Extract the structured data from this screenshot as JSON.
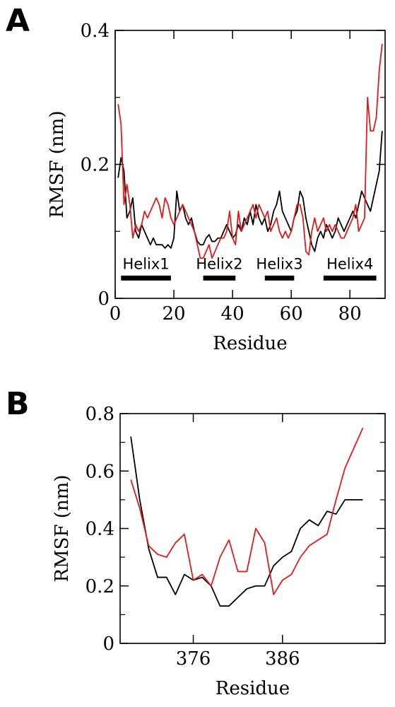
{
  "chart_data": [
    {
      "panel": "A",
      "type": "line",
      "xlabel": "Residue",
      "ylabel": "RMSF (nm)",
      "xlim": [
        0,
        92
      ],
      "ylim": [
        0,
        0.4
      ],
      "xticks": [
        0,
        20,
        40,
        60,
        80
      ],
      "yticks": [
        0,
        0.2,
        0.4
      ],
      "ytick_labels": [
        "0",
        "0.2",
        "0.4"
      ],
      "grid": false,
      "series": [
        {
          "color": "#000000",
          "x": [
            1,
            2,
            3,
            4,
            5,
            6,
            7,
            8,
            9,
            10,
            11,
            12,
            13,
            14,
            15,
            16,
            17,
            18,
            19,
            20,
            21,
            22,
            23,
            24,
            25,
            26,
            27,
            28,
            29,
            30,
            31,
            32,
            33,
            34,
            35,
            36,
            37,
            38,
            39,
            40,
            41,
            42,
            43,
            44,
            45,
            46,
            47,
            48,
            49,
            50,
            51,
            52,
            53,
            54,
            55,
            56,
            57,
            58,
            59,
            60,
            61,
            62,
            63,
            64,
            65,
            66,
            67,
            68,
            69,
            70,
            71,
            72,
            73,
            74,
            75,
            76,
            77,
            78,
            79,
            80,
            81,
            82,
            83,
            84,
            85,
            86,
            87,
            88,
            89,
            90,
            91
          ],
          "values": [
            0.18,
            0.21,
            0.19,
            0.12,
            0.13,
            0.15,
            0.1,
            0.09,
            0.11,
            0.1,
            0.09,
            0.08,
            0.09,
            0.08,
            0.08,
            0.08,
            0.075,
            0.08,
            0.075,
            0.09,
            0.16,
            0.13,
            0.14,
            0.12,
            0.11,
            0.12,
            0.1,
            0.085,
            0.08,
            0.08,
            0.09,
            0.095,
            0.085,
            0.085,
            0.09,
            0.09,
            0.1,
            0.11,
            0.1,
            0.09,
            0.095,
            0.11,
            0.1,
            0.12,
            0.11,
            0.13,
            0.11,
            0.14,
            0.12,
            0.11,
            0.12,
            0.1,
            0.11,
            0.13,
            0.14,
            0.16,
            0.13,
            0.12,
            0.11,
            0.1,
            0.12,
            0.13,
            0.16,
            0.15,
            0.12,
            0.1,
            0.08,
            0.07,
            0.09,
            0.1,
            0.09,
            0.11,
            0.1,
            0.09,
            0.1,
            0.12,
            0.11,
            0.1,
            0.11,
            0.12,
            0.13,
            0.12,
            0.14,
            0.16,
            0.15,
            0.14,
            0.13,
            0.15,
            0.17,
            0.19,
            0.25
          ]
        },
        {
          "color": "#e31a1c",
          "x": [
            1,
            2,
            3,
            4,
            5,
            6,
            7,
            8,
            9,
            10,
            11,
            12,
            13,
            14,
            15,
            16,
            17,
            18,
            19,
            20,
            21,
            22,
            23,
            24,
            25,
            26,
            27,
            28,
            29,
            30,
            31,
            32,
            33,
            34,
            35,
            36,
            37,
            38,
            39,
            40,
            41,
            42,
            43,
            44,
            45,
            46,
            47,
            48,
            49,
            50,
            51,
            52,
            53,
            54,
            55,
            56,
            57,
            58,
            59,
            60,
            61,
            62,
            63,
            64,
            65,
            66,
            67,
            68,
            69,
            70,
            71,
            72,
            73,
            74,
            75,
            76,
            77,
            78,
            79,
            80,
            81,
            82,
            83,
            84,
            85,
            86,
            87,
            88,
            89,
            90,
            91
          ],
          "values": [
            0.29,
            0.26,
            0.14,
            0.17,
            0.14,
            0.09,
            0.11,
            0.1,
            0.11,
            0.13,
            0.12,
            0.13,
            0.14,
            0.15,
            0.14,
            0.12,
            0.15,
            0.14,
            0.12,
            0.11,
            0.12,
            0.13,
            0.14,
            0.13,
            0.12,
            0.11,
            0.1,
            0.08,
            0.06,
            0.06,
            0.07,
            0.08,
            0.06,
            0.07,
            0.08,
            0.09,
            0.09,
            0.1,
            0.13,
            0.09,
            0.08,
            0.13,
            0.1,
            0.11,
            0.12,
            0.13,
            0.14,
            0.12,
            0.14,
            0.13,
            0.12,
            0.13,
            0.1,
            0.11,
            0.12,
            0.1,
            0.09,
            0.1,
            0.09,
            0.1,
            0.12,
            0.14,
            0.14,
            0.12,
            0.07,
            0.065,
            0.1,
            0.12,
            0.1,
            0.11,
            0.12,
            0.1,
            0.11,
            0.1,
            0.11,
            0.1,
            0.09,
            0.09,
            0.1,
            0.11,
            0.12,
            0.14,
            0.1,
            0.11,
            0.12,
            0.3,
            0.25,
            0.25,
            0.27,
            0.34,
            0.38
          ]
        }
      ],
      "annotations": [
        {
          "label": "Helix1",
          "start": 2,
          "end": 19
        },
        {
          "label": "Helix2",
          "start": 30,
          "end": 41
        },
        {
          "label": "Helix3",
          "start": 51,
          "end": 61
        },
        {
          "label": "Helix4",
          "start": 71,
          "end": 89
        }
      ]
    },
    {
      "panel": "B",
      "type": "line",
      "xlabel": "Residue",
      "ylabel": "RMSF (nm)",
      "xlim": [
        367.8,
        397.5
      ],
      "ylim": [
        0,
        0.8
      ],
      "xticks": [
        376,
        386
      ],
      "yticks": [
        0,
        0.2,
        0.4,
        0.6,
        0.8
      ],
      "ytick_labels": [
        "0",
        "0.2",
        "0.4",
        "0.6",
        "0.8"
      ],
      "grid": false,
      "series": [
        {
          "color": "#000000",
          "x": [
            369,
            370,
            371,
            372,
            373,
            374,
            375,
            376,
            377,
            378,
            379,
            380,
            381,
            382,
            383,
            384,
            385,
            386,
            387,
            388,
            389,
            390,
            391,
            392,
            393,
            394,
            395
          ],
          "values": [
            0.72,
            0.5,
            0.33,
            0.23,
            0.23,
            0.17,
            0.24,
            0.22,
            0.23,
            0.2,
            0.13,
            0.13,
            0.16,
            0.19,
            0.2,
            0.2,
            0.27,
            0.3,
            0.32,
            0.4,
            0.43,
            0.41,
            0.46,
            0.45,
            0.5,
            0.5,
            0.5
          ]
        },
        {
          "color": "#e31a1c",
          "x": [
            369,
            370,
            371,
            372,
            373,
            374,
            375,
            376,
            377,
            378,
            379,
            380,
            381,
            382,
            383,
            384,
            385,
            386,
            387,
            388,
            389,
            390,
            391,
            392,
            393,
            394,
            395
          ],
          "values": [
            0.57,
            0.47,
            0.34,
            0.31,
            0.3,
            0.35,
            0.38,
            0.22,
            0.24,
            0.2,
            0.3,
            0.36,
            0.25,
            0.25,
            0.4,
            0.35,
            0.17,
            0.22,
            0.24,
            0.3,
            0.34,
            0.36,
            0.38,
            0.5,
            0.61,
            0.68,
            0.75
          ]
        }
      ]
    }
  ],
  "panels": {
    "a": {
      "label": "A"
    },
    "b": {
      "label": "B"
    }
  }
}
